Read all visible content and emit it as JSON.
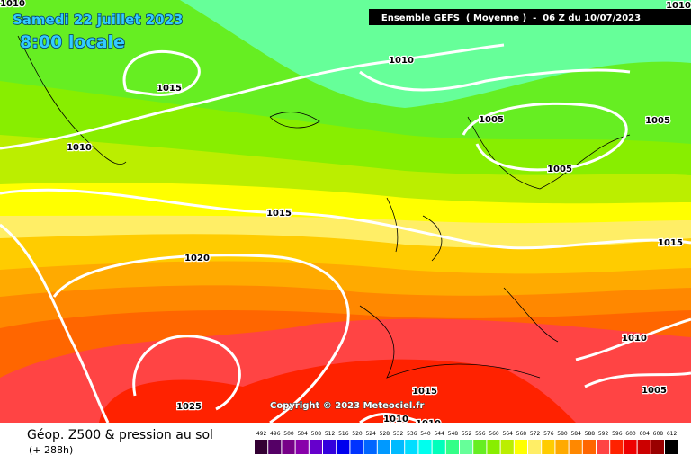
{
  "header": {
    "title": "Samedi 22 juillet 2023",
    "time": "8:00 locale",
    "model": "Ensemble GEFS  ( Moyenne )  -  06 Z du 10/07/2023"
  },
  "isobar_labels": [
    1010,
    1015,
    1010,
    1010,
    1005,
    1005,
    1005,
    1015,
    1015,
    1020,
    1010,
    1005,
    1015,
    1025,
    1010,
    1010,
    1010
  ],
  "copyright": "Copyright © 2023 Meteociel.fr",
  "footer": {
    "title": "Géop. Z500 & pression au sol",
    "lead": "(+ 288h)"
  },
  "legend": {
    "levels": [
      492,
      496,
      500,
      504,
      508,
      512,
      516,
      520,
      524,
      528,
      532,
      536,
      540,
      544,
      548,
      552,
      556,
      560,
      564,
      568,
      572,
      576,
      580,
      584,
      588,
      592,
      596,
      600,
      604,
      608,
      612
    ],
    "colors": [
      "#330033",
      "#550066",
      "#770088",
      "#8800aa",
      "#6600cc",
      "#3300dd",
      "#0000ee",
      "#0033ff",
      "#0066ff",
      "#0099ff",
      "#00bbff",
      "#00ddff",
      "#00ffee",
      "#00ffbb",
      "#33ff88",
      "#66ff99",
      "#66ee22",
      "#88ee00",
      "#bbee00",
      "#ffff00",
      "#ffee66",
      "#ffcc00",
      "#ffaa00",
      "#ff8800",
      "#ff6600",
      "#ff4444",
      "#ff2200",
      "#ee0000",
      "#cc0000",
      "#990000",
      "#000000"
    ]
  }
}
